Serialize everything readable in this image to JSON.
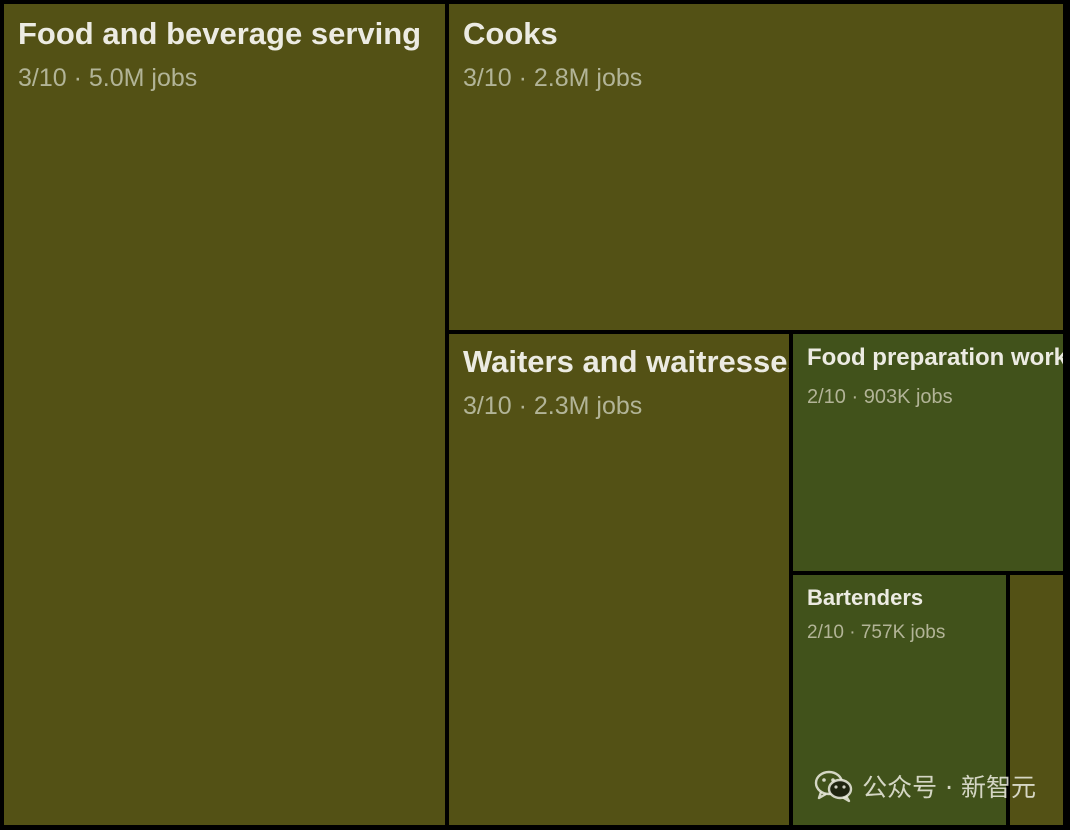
{
  "chart_data": {
    "type": "treemap",
    "title": "",
    "colors": {
      "score_3": "#535115",
      "score_2": "#41521b",
      "border": "#000000"
    },
    "cells": [
      {
        "label": "Food and beverage serving",
        "score": "3/10",
        "jobs": 5000000,
        "jobs_label": "5.0M"
      },
      {
        "label": "Cooks",
        "score": "3/10",
        "jobs": 2800000,
        "jobs_label": "2.8M"
      },
      {
        "label": "Waiters and waitresses",
        "score": "3/10",
        "jobs": 2300000,
        "jobs_label": "2.3M"
      },
      {
        "label": "Food preparation workers",
        "score": "2/10",
        "jobs": 903000,
        "jobs_label": "903K"
      },
      {
        "label": "Bartenders",
        "score": "2/10",
        "jobs": 757000,
        "jobs_label": "757K"
      },
      {
        "label": "",
        "score": "3/10",
        "jobs": 160000,
        "jobs_label": ""
      }
    ]
  },
  "watermark": {
    "text": "公众号 · 新智元",
    "icon": "wechat-icon"
  }
}
